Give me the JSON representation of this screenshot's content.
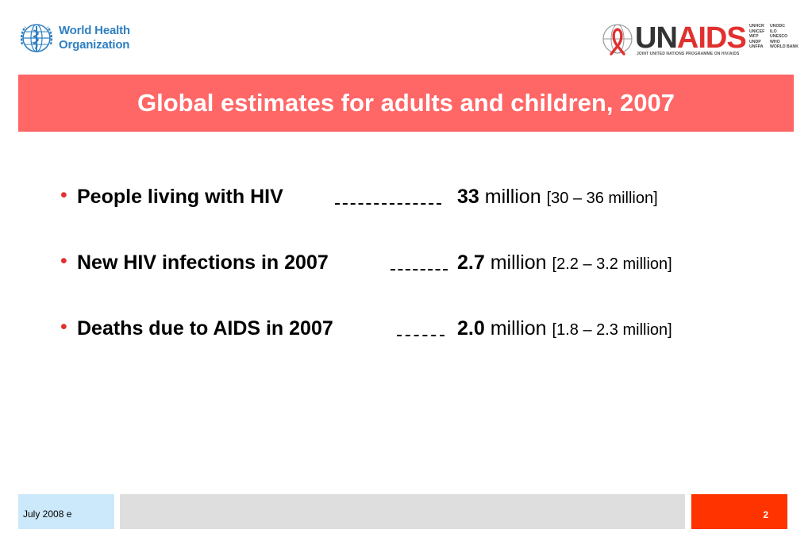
{
  "header": {
    "who": {
      "line1": "World Health",
      "line2": "Organization"
    },
    "unaids": {
      "word_un": "UN",
      "word_aids": "AIDS",
      "tagline": "JOINT UNITED NATIONS PROGRAMME ON HIV/AIDS",
      "cosponsors_col1": [
        "UNHCR",
        "UNICEF",
        "WFP",
        "UNDP",
        "UNFPA"
      ],
      "cosponsors_col2": [
        "UNODC",
        "ILO",
        "UNESCO",
        "WHO",
        "WORLD BANK"
      ]
    }
  },
  "title": "Global estimates for adults and children, 2007",
  "bullets": [
    {
      "label": "People living with HIV",
      "value": "33",
      "unit": "million",
      "range": "[30 – 36 million]"
    },
    {
      "label": "New HIV infections in 2007",
      "value": "2.7",
      "unit": "million",
      "range": "[2.2 – 3.2 million]"
    },
    {
      "label": "Deaths due to AIDS in 2007",
      "value": "2.0",
      "unit": "million",
      "range": "[1.8 – 2.3 million]"
    }
  ],
  "footer": {
    "date": "July 2008  e",
    "page_number": "2"
  },
  "colors": {
    "title_bar": "#ff6666",
    "bullet_dot": "#e0312f",
    "footer_left": "#cce9fb",
    "footer_mid": "#dedede",
    "footer_right": "#ff3300",
    "who_blue": "#2f7fc1",
    "aids_red": "#e0312f"
  }
}
